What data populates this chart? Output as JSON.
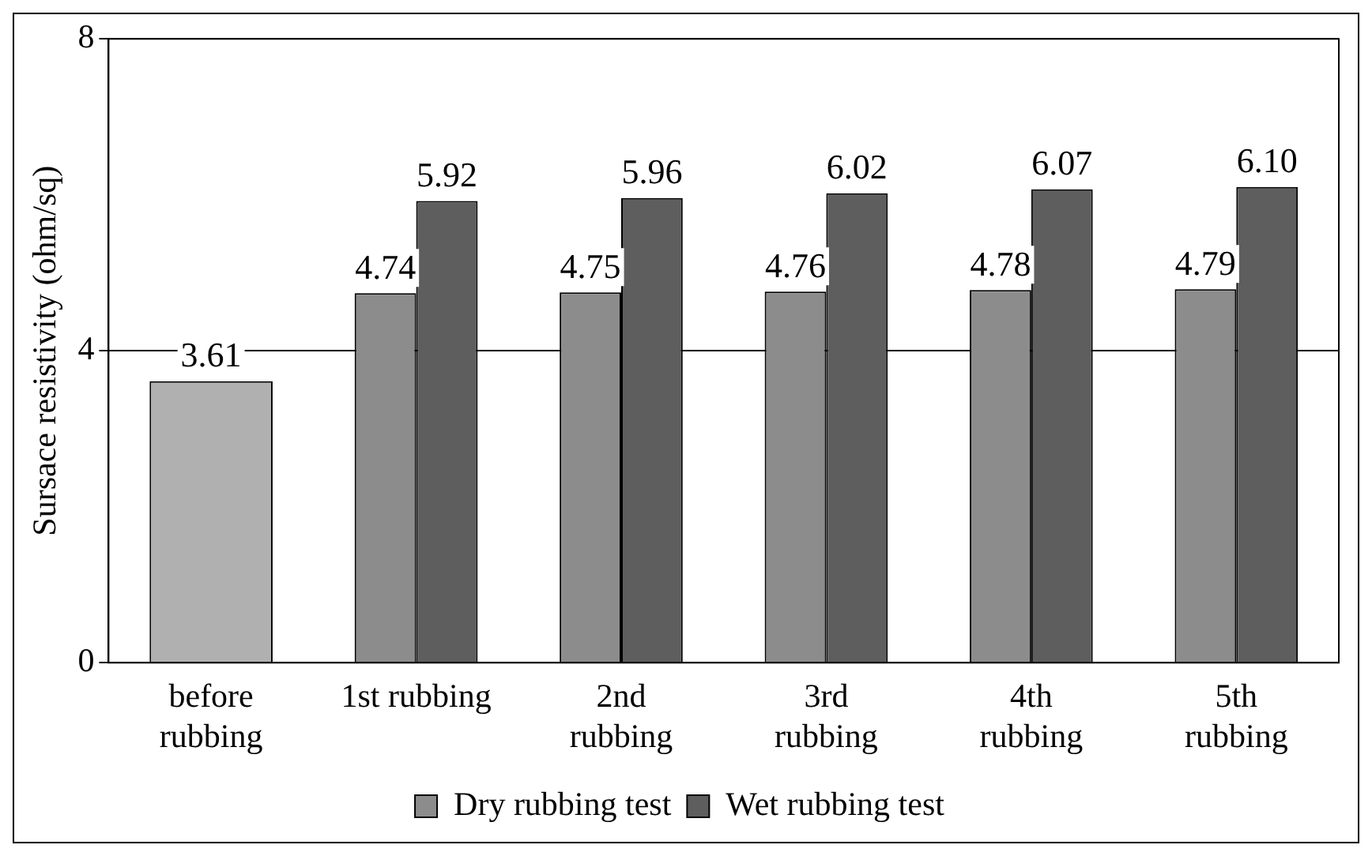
{
  "chart_data": {
    "type": "bar",
    "ylabel": "Sursace resistivity (ohm/sq)",
    "categories": [
      "before\nrubbing",
      "1st rubbing",
      "2nd\nrubbing",
      "3rd\nrubbing",
      "4th\nrubbing",
      "5th\nrubbing"
    ],
    "series": [
      {
        "color": "#b0b0b0",
        "values": [
          3.61,
          null,
          null,
          null,
          null,
          null
        ]
      },
      {
        "name": "Dry rubbing test",
        "color": "#8c8c8c",
        "values": [
          null,
          4.74,
          4.75,
          4.76,
          4.78,
          4.79
        ]
      },
      {
        "name": "Wet rubbing test",
        "color": "#5e5e5e",
        "values": [
          null,
          5.92,
          5.96,
          6.02,
          6.07,
          6.1
        ]
      }
    ],
    "value_labels": [
      [
        "3.61",
        null,
        null,
        null,
        null,
        null
      ],
      [
        null,
        "4.74",
        "4.75",
        "4.76",
        "4.78",
        "4.79"
      ],
      [
        null,
        "5.92",
        "5.96",
        "6.02",
        "6.07",
        "6.10"
      ]
    ],
    "ylim": [
      0,
      8
    ],
    "yticks": [
      0,
      4,
      8
    ],
    "grid": "y",
    "legend": "bottom"
  }
}
